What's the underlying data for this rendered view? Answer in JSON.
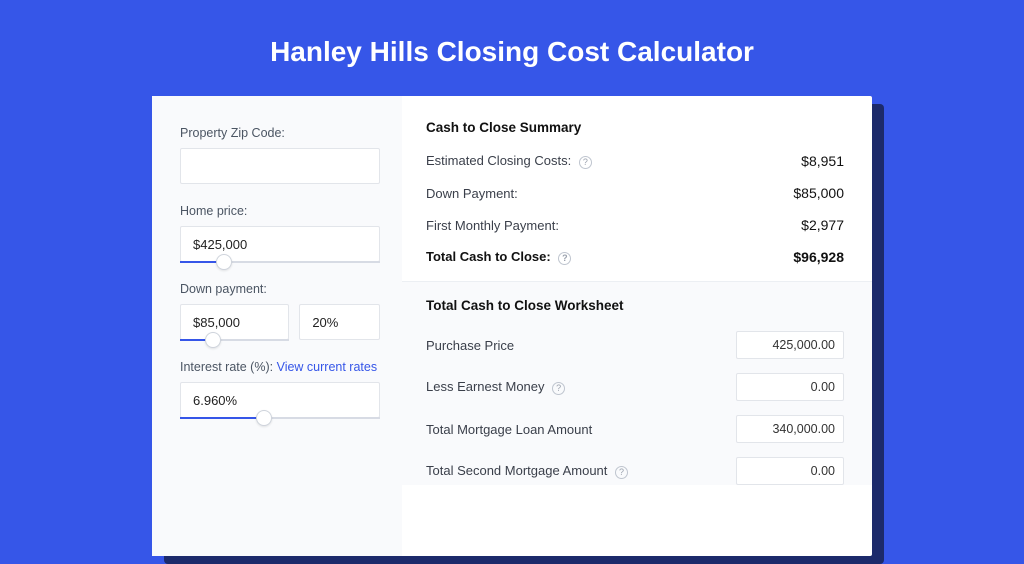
{
  "page": {
    "title": "Hanley Hills Closing Cost Calculator",
    "background_color": "#3656e8",
    "shadow_color": "#1c2a6b",
    "card_bg": "#ffffff",
    "panel_bg": "#f9fafc",
    "accent": "#3656e8",
    "border": "#e2e5ea"
  },
  "form": {
    "zip_label": "Property Zip Code:",
    "zip_value": "",
    "home_price_label": "Home price:",
    "home_price_value": "$425,000",
    "home_price_slider_pct": 22,
    "down_payment_label": "Down payment:",
    "down_payment_value": "$85,000",
    "down_payment_pct": "20%",
    "down_payment_slider_pct": 30,
    "interest_label": "Interest rate (%):",
    "interest_link": "View current rates",
    "interest_value": "6.960%",
    "interest_slider_pct": 42
  },
  "summary": {
    "title": "Cash to Close Summary",
    "rows": [
      {
        "label": "Estimated Closing Costs:",
        "help": true,
        "value": "$8,951"
      },
      {
        "label": "Down Payment:",
        "help": false,
        "value": "$85,000"
      },
      {
        "label": "First Monthly Payment:",
        "help": false,
        "value": "$2,977"
      }
    ],
    "total_label": "Total Cash to Close:",
    "total_help": true,
    "total_value": "$96,928"
  },
  "worksheet": {
    "title": "Total Cash to Close Worksheet",
    "rows": [
      {
        "label": "Purchase Price",
        "help": false,
        "value": "425,000.00"
      },
      {
        "label": "Less Earnest Money",
        "help": true,
        "value": "0.00"
      },
      {
        "label": "Total Mortgage Loan Amount",
        "help": false,
        "value": "340,000.00"
      },
      {
        "label": "Total Second Mortgage Amount",
        "help": true,
        "value": "0.00"
      }
    ]
  }
}
